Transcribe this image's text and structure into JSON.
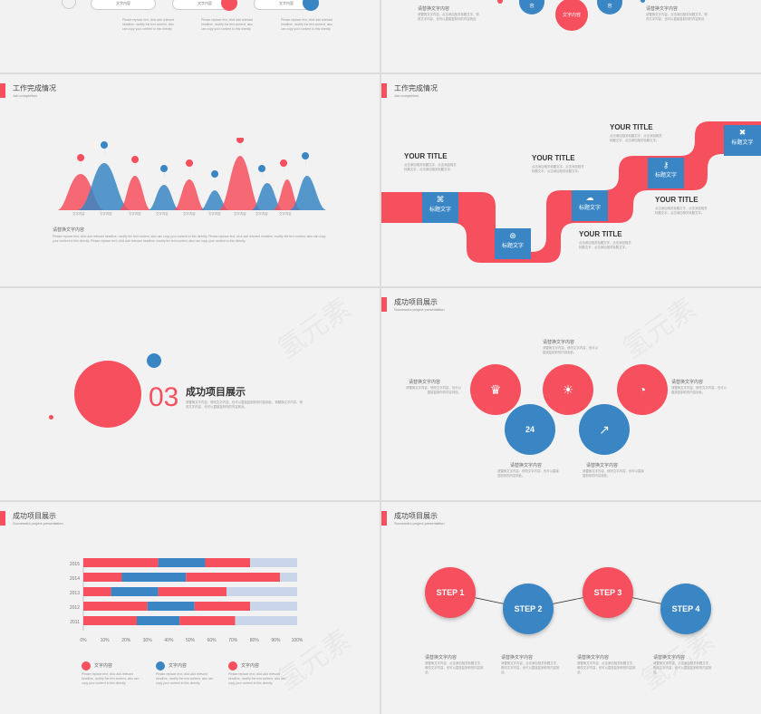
{
  "slide1": {
    "pills": [
      "文字内容",
      "文字内容",
      "文字内容"
    ],
    "para": "Please replace text, click add relevant headline, modify the text content, also can copy your content to this directly"
  },
  "slide2": {
    "heading": "请替换文字内容",
    "center_label": "文字内容",
    "para": "请替换文字内容，点击添加相关标题文字，修改文字内容，也可以直接复制你的内容到此",
    "small_labels": [
      "容",
      "容"
    ]
  },
  "slide3": {
    "title": "工作完成情况",
    "subtitle": "Job completion",
    "labels": [
      "文字内容",
      "文字内容",
      "文字内容",
      "文字内容",
      "文字内容",
      "文字内容",
      "文字内容",
      "文字内容",
      "文字内容"
    ],
    "text_title": "请替换文字内容",
    "para": "Please replace text, click add relevant headline, modify the text content, also can copy your content to this directly. Please replace text, click add relevant headline, modify the text content, also can copy your content to this directly. Please replace text, click add relevant headline, modify the text content, also can copy your content to this directly."
  },
  "slide4": {
    "title": "工作完成情况",
    "subtitle": "Job completion",
    "your_title": "YOUR TITLE",
    "label": "标题文字",
    "para": "点击添加相关标题文字，点击添加相关标题文字，点击添加相关标题文字。"
  },
  "slide5": {
    "number": "03",
    "title": "成功项目展示",
    "para": "请替换文字内容，修改文字内容，也可以直接复制你的内容到此，请替换文字内容，修改文字内容，也可以直接复制你的内容到此。",
    "watermark": "氢元素"
  },
  "slide6": {
    "title": "成功项目展示",
    "subtitle": "Successful project presentation",
    "text_title": "请替换文字内容",
    "para": "请替换文字内容，修改文字内容，也可以直接复制你的内容到此。",
    "badge": "24",
    "watermark": "氢元素"
  },
  "slide7": {
    "title": "成功项目展示",
    "subtitle": "Successful project presentation",
    "legend": [
      "文字内容",
      "文字内容",
      "文字内容"
    ],
    "legend_para": "Please replace text, click add relevant headline, modify the text content, also can copy your content to this directly.",
    "watermark": "氢元素",
    "chart_data": {
      "type": "bar",
      "orientation": "horizontal",
      "stacked": true,
      "categories": [
        "2015",
        "2014",
        "2013",
        "2012",
        "2011"
      ],
      "series": [
        {
          "color": "#f6505e",
          "values": [
            35,
            18,
            13,
            30,
            25
          ]
        },
        {
          "color": "#3a86c4",
          "values": [
            22,
            30,
            22,
            22,
            20
          ]
        },
        {
          "color": "#f6505e",
          "values": [
            21,
            44,
            32,
            26,
            26
          ]
        },
        {
          "color": "#c9d6ea",
          "values": [
            22,
            8,
            33,
            22,
            29
          ]
        }
      ],
      "xticks": [
        "0%",
        "10%",
        "20%",
        "30%",
        "40%",
        "50%",
        "60%",
        "70%",
        "80%",
        "90%",
        "100%"
      ],
      "xlim": [
        0,
        100
      ]
    }
  },
  "slide8": {
    "title": "成功项目展示",
    "subtitle": "Successful project presentation",
    "steps": [
      "STEP 1",
      "STEP 2",
      "STEP 3",
      "STEP 4"
    ],
    "text_title": "请替换文字内容",
    "para": "请替换文字内容，点击添加相关标题文字，修改文字内容，也可以直接复制你的内容到此。",
    "watermark": "氢元素"
  },
  "colors": {
    "red": "#f6505e",
    "blue": "#3a86c4",
    "light_blue": "#c9d6ea"
  }
}
